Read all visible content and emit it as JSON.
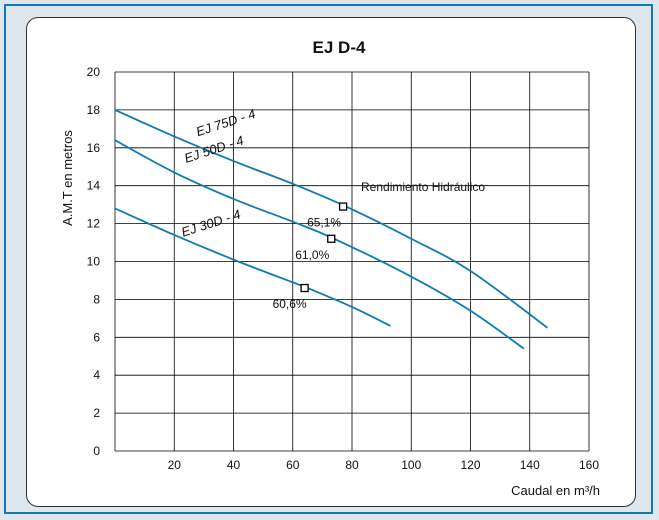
{
  "chart_data": {
    "type": "line",
    "title": "EJ D-4",
    "xlabel": "Caudal en m³/h",
    "ylabel": "A.M.T en metros",
    "xlim": [
      0,
      160
    ],
    "ylim": [
      0,
      20
    ],
    "x_ticks": [
      20,
      40,
      60,
      80,
      100,
      120,
      140,
      160
    ],
    "y_ticks": [
      0,
      2,
      4,
      6,
      8,
      10,
      12,
      14,
      16,
      18,
      20
    ],
    "grid": true,
    "colors": {
      "line": "#0e7bb5",
      "frame": "#0e7bb5",
      "background": "#dfe7ee"
    },
    "annotation": "Rendimiento Hidráulico",
    "series": [
      {
        "name": "EJ 75D - 4",
        "x": [
          0,
          20,
          40,
          60,
          78,
          100,
          120,
          146
        ],
        "y": [
          18.0,
          16.6,
          15.3,
          14.1,
          12.9,
          11.2,
          9.5,
          6.5
        ],
        "efficiency_point": {
          "x": 77,
          "y": 12.9,
          "label": "65,1%"
        }
      },
      {
        "name": "EJ 50D - 4",
        "x": [
          0,
          20,
          40,
          60,
          74,
          100,
          120,
          138
        ],
        "y": [
          16.4,
          14.7,
          13.3,
          12.1,
          11.2,
          9.2,
          7.4,
          5.4
        ],
        "efficiency_point": {
          "x": 73,
          "y": 11.2,
          "label": "61,0%"
        }
      },
      {
        "name": "EJ 30D - 4",
        "x": [
          0,
          20,
          40,
          60,
          65,
          80,
          93
        ],
        "y": [
          12.8,
          11.4,
          10.1,
          8.9,
          8.6,
          7.6,
          6.6
        ],
        "efficiency_point": {
          "x": 64,
          "y": 8.6,
          "label": "60,6%"
        }
      }
    ]
  }
}
